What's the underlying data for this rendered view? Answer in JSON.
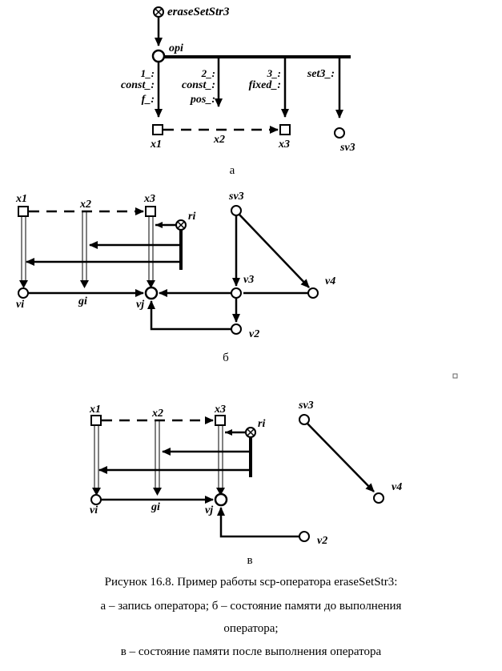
{
  "panel_a": {
    "operator_label": "eraseSetStr3",
    "opi_label": "opi",
    "arc1_label": {
      "num": "1_:",
      "l1": "const_:",
      "l2": "f_:"
    },
    "arc2_label": {
      "num": "2_:",
      "l1": "const_:",
      "l2": "pos_:"
    },
    "arc3_label": {
      "num": "3_:",
      "l1": "fixed_:"
    },
    "arc4_label": {
      "l1": "set3_:"
    },
    "x1": "x1",
    "x2": "x2",
    "x3": "x3",
    "sv3": "sv3",
    "sub_label": "а"
  },
  "panel_b": {
    "x1": "x1",
    "x2": "x2",
    "x3": "x3",
    "ri": "ri",
    "sv3": "sv3",
    "vi": "vi",
    "gi": "gi",
    "vj": "vj",
    "v3": "v3",
    "v4": "v4",
    "v2": "v2",
    "sub_label": "б"
  },
  "panel_c": {
    "x1": "x1",
    "x2": "x2",
    "x3": "x3",
    "ri": "ri",
    "sv3": "sv3",
    "vi": "vi",
    "gi": "gi",
    "vj": "vj",
    "v4": "v4",
    "v2": "v2",
    "sub_label": "в"
  },
  "caption": {
    "line1": "Рисунок 16.8. Пример работы scp-оператора eraseSetStr3:",
    "line2": "а – запись оператора; б – состояние памяти до выполнения",
    "line3": "оператора;",
    "line4": "в – состояние памяти после выполнения оператора"
  }
}
